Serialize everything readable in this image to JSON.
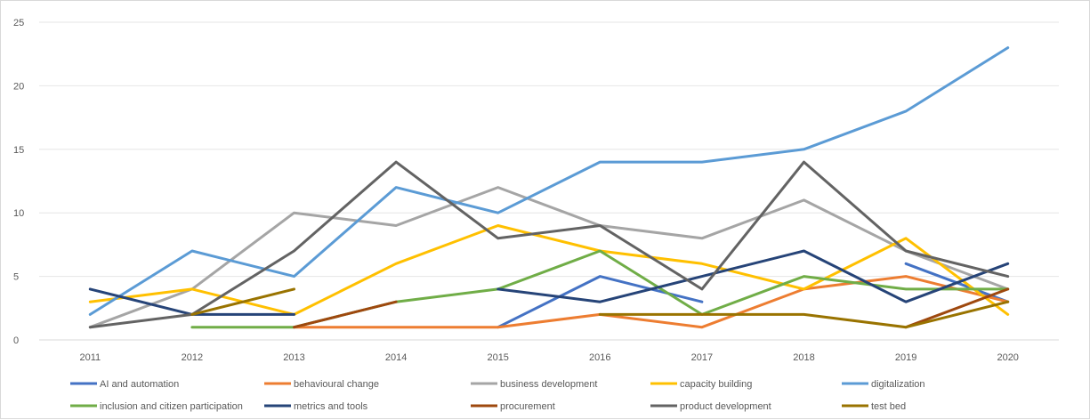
{
  "chart_data": {
    "type": "line",
    "title": "",
    "xlabel": "",
    "ylabel": "",
    "x": [
      "2011",
      "2012",
      "2013",
      "2014",
      "2015",
      "2016",
      "2017",
      "2018",
      "2019",
      "2020"
    ],
    "ylim": [
      0,
      25
    ],
    "yticks": [
      "0",
      "5",
      "10",
      "15",
      "20",
      "25"
    ],
    "grid": true,
    "legend_position": "bottom",
    "series": [
      {
        "name": "AI and automation",
        "color": "#4472c4",
        "values": [
          null,
          null,
          null,
          null,
          1,
          5,
          3,
          null,
          6,
          3
        ]
      },
      {
        "name": "behavioural change",
        "color": "#ed7d31",
        "values": [
          null,
          null,
          1,
          1,
          1,
          2,
          1,
          4,
          5,
          3
        ]
      },
      {
        "name": "business development",
        "color": "#a5a5a5",
        "values": [
          1,
          4,
          10,
          9,
          12,
          9,
          8,
          11,
          7,
          4
        ]
      },
      {
        "name": "capacity building",
        "color": "#ffc000",
        "values": [
          3,
          4,
          2,
          6,
          9,
          7,
          6,
          4,
          8,
          2
        ]
      },
      {
        "name": "digitalization",
        "color": "#5b9bd5",
        "values": [
          2,
          7,
          5,
          12,
          10,
          14,
          14,
          15,
          18,
          23
        ]
      },
      {
        "name": "inclusion and citizen participation",
        "color": "#70ad47",
        "values": [
          null,
          1,
          1,
          3,
          4,
          7,
          2,
          5,
          4,
          4
        ]
      },
      {
        "name": "metrics and tools",
        "color": "#264478",
        "values": [
          4,
          2,
          2,
          null,
          4,
          3,
          5,
          7,
          3,
          6
        ]
      },
      {
        "name": "procurement",
        "color": "#9e480e",
        "values": [
          null,
          null,
          1,
          3,
          null,
          null,
          null,
          null,
          1,
          4
        ]
      },
      {
        "name": "product development",
        "color": "#636363",
        "values": [
          1,
          2,
          7,
          14,
          8,
          9,
          4,
          14,
          7,
          5
        ]
      },
      {
        "name": "test bed",
        "color": "#997300",
        "values": [
          null,
          2,
          4,
          null,
          null,
          2,
          2,
          2,
          1,
          3
        ]
      }
    ]
  }
}
